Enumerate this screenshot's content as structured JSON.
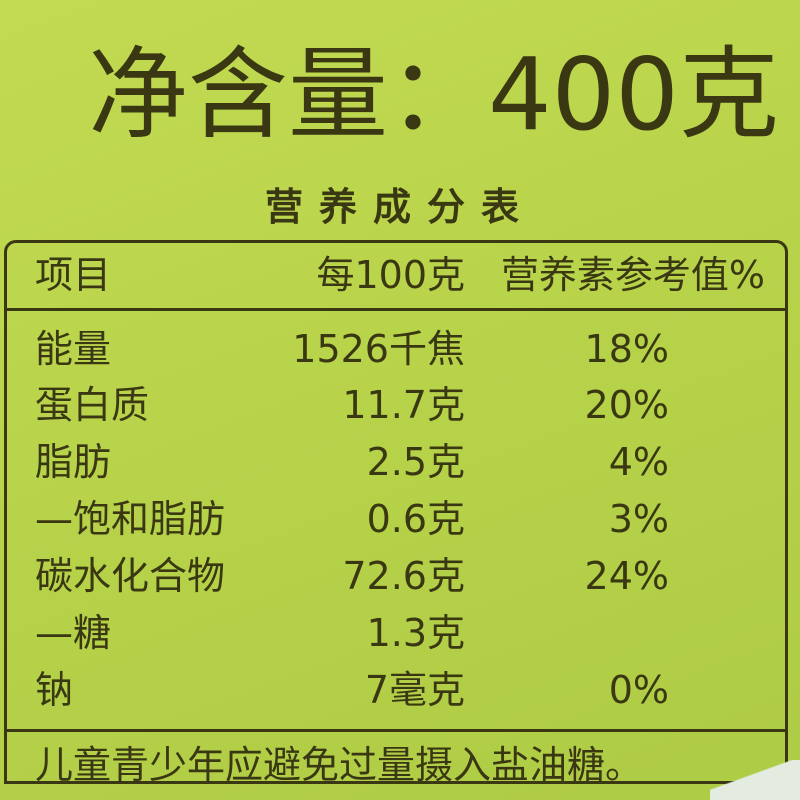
{
  "title": "净含量：400克",
  "subtitle": "营养成分表",
  "table": {
    "headers": [
      "项目",
      "每100克",
      "营养素参考值%"
    ],
    "rows": [
      {
        "item": "能量",
        "per100g": "1526千焦",
        "nrv": "18%"
      },
      {
        "item": "蛋白质",
        "per100g": "11.7克",
        "nrv": "20%"
      },
      {
        "item": "脂肪",
        "per100g": "2.5克",
        "nrv": "4%"
      },
      {
        "item": "—饱和脂肪",
        "per100g": "0.6克",
        "nrv": "3%"
      },
      {
        "item": "碳水化合物",
        "per100g": "72.6克",
        "nrv": "24%"
      },
      {
        "item": "—糖",
        "per100g": "1.3克",
        "nrv": ""
      },
      {
        "item": "钠",
        "per100g": "7毫克",
        "nrv": "0%"
      }
    ],
    "footer": "儿童青少年应避免过量摄入盐油糖。"
  },
  "colors": {
    "background": "#b9d44c",
    "ink": "#3a3812"
  }
}
